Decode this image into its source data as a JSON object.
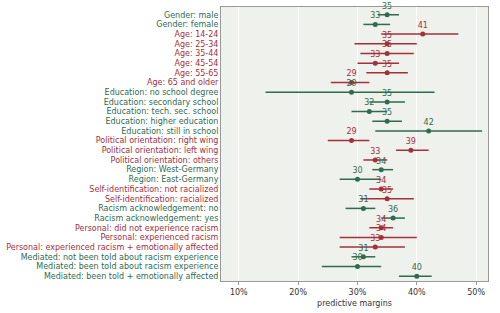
{
  "chart_data": {
    "type": "dot",
    "orientation": "horizontal",
    "x_label": "predictive margins",
    "categories": [
      "Gender: male",
      "Gender: female",
      "Age: 14-24",
      "Age: 25-34",
      "Age: 35-44",
      "Age: 45-54",
      "Age: 55-65",
      "Age: 65 and older",
      "Education: no school degree",
      "Education: secondary school",
      "Education: tech. sec. school",
      "Education: higher education",
      "Education: still in school",
      "Political orientation: right wing",
      "Political orientation: left wing",
      "Political orientation: others",
      "Region: West-Germany",
      "Region: East-Germany",
      "Self-identification: not racialized",
      "Self-identification: racialized",
      "Racism acknowledgement: no",
      "Racism acknowledgement: yes",
      "Personal: did not experience racism",
      "Personal: experienced racism",
      "Personal: experienced racism + emotionally affected",
      "Mediated: not been told about racism experience",
      "Mediated: been told about racism experience",
      "Mediated: been told + emotionally affected"
    ],
    "values": [
      35,
      33,
      41,
      35,
      35,
      33,
      35,
      29,
      29,
      35,
      32,
      35,
      42,
      29,
      39,
      33,
      34,
      30,
      34,
      35,
      31,
      36,
      34,
      34,
      33,
      31,
      30,
      40
    ],
    "ci_low": [
      33.5,
      31,
      34,
      29.5,
      30.5,
      30,
      31.5,
      25.5,
      14.5,
      32,
      29,
      32.5,
      33,
      25,
      36.5,
      31,
      32.5,
      27,
      32,
      30.5,
      28,
      34,
      32,
      27,
      27,
      29,
      24,
      37
    ],
    "ci_high": [
      37,
      35.5,
      47,
      40,
      39.5,
      37,
      38.5,
      32,
      43,
      38,
      35,
      37.5,
      51,
      32,
      42,
      35,
      36,
      34,
      36,
      39.5,
      33,
      38,
      36,
      40,
      38,
      33,
      34,
      42.5
    ],
    "colors": [
      "#2f6b4f",
      "#2f6b4f",
      "#a3303c",
      "#a3303c",
      "#a3303c",
      "#a3303c",
      "#a3303c",
      "#a3303c",
      "#2f6b4f",
      "#2f6b4f",
      "#2f6b4f",
      "#2f6b4f",
      "#2f6b4f",
      "#a3303c",
      "#a3303c",
      "#a3303c",
      "#2f6b4f",
      "#2f6b4f",
      "#a3303c",
      "#a3303c",
      "#2f6b4f",
      "#2f6b4f",
      "#a3303c",
      "#a3303c",
      "#a3303c",
      "#2f6b4f",
      "#2f6b4f",
      "#2f6b4f"
    ],
    "xlim": [
      7,
      52
    ],
    "xticks": [
      {
        "value": 10,
        "label": "10%"
      },
      {
        "value": 20,
        "label": "20%"
      },
      {
        "value": 30,
        "label": "30%"
      },
      {
        "value": 40,
        "label": "40%"
      },
      {
        "value": 50,
        "label": "50%"
      }
    ],
    "grid": true,
    "data_labels": true,
    "marker": "circle"
  }
}
